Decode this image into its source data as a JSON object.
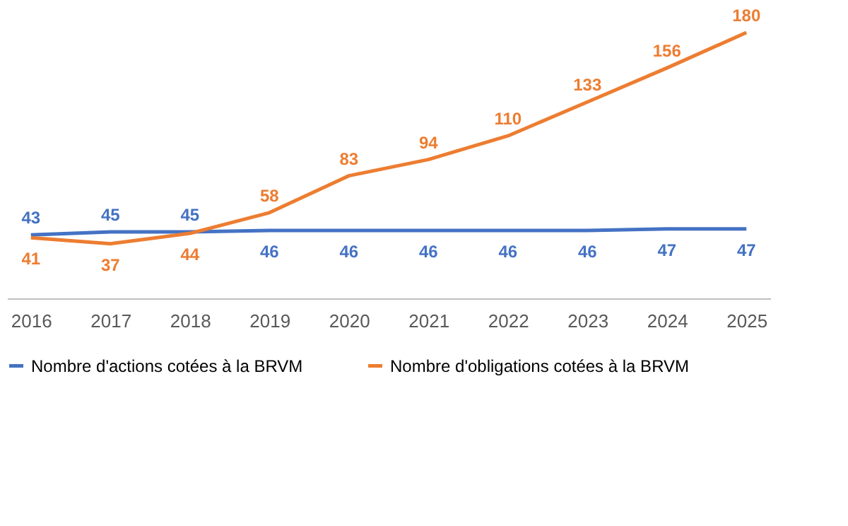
{
  "chart_data": {
    "type": "line",
    "categories": [
      "2016",
      "2017",
      "2018",
      "2019",
      "2020",
      "2021",
      "2022",
      "2023",
      "2024",
      "2025"
    ],
    "series": [
      {
        "name": "Nombre d'actions cotées à la BRVM",
        "color": "#4472c4",
        "values": [
          43,
          45,
          45,
          46,
          46,
          46,
          46,
          46,
          47,
          47
        ]
      },
      {
        "name": "Nombre d'obligations cotées à la BRVM",
        "color": "#ed7d31",
        "values": [
          41,
          37,
          44,
          58,
          83,
          94,
          110,
          133,
          156,
          180
        ]
      }
    ],
    "data_labels": true,
    "legend": "bottom",
    "grid": false,
    "marker": "none",
    "line_style": "solid"
  }
}
